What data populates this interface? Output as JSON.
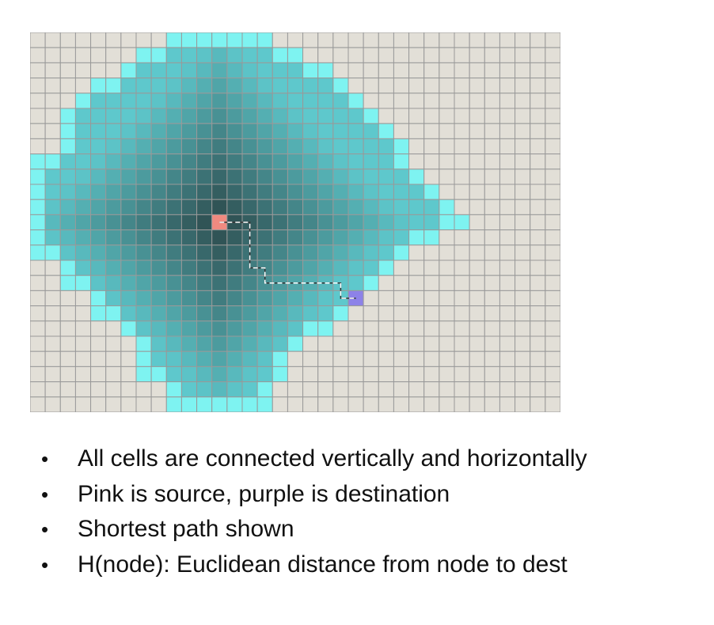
{
  "grid": {
    "cols": 35,
    "rows": 25,
    "source": [
      12,
      12
    ],
    "destination": [
      21,
      17
    ],
    "colors": {
      "unexplored": "#e2dfd7",
      "gridline": "#999999",
      "frontier": "#7ef3f1",
      "explored_light": "#5ec8cc",
      "explored_dark": "#2c4a4c",
      "source": "#f08a80",
      "destination": "#8d82e8",
      "path": "#ffffff"
    },
    "explored_rows": [
      [
        9,
        15
      ],
      [
        7,
        17
      ],
      [
        6,
        19
      ],
      [
        4,
        20
      ],
      [
        3,
        21
      ],
      [
        2,
        22
      ],
      [
        2,
        23
      ],
      [
        2,
        24
      ],
      [
        0,
        24
      ],
      [
        0,
        25
      ],
      [
        0,
        26
      ],
      [
        0,
        27
      ],
      [
        0,
        28
      ],
      [
        0,
        26
      ],
      [
        0,
        24
      ],
      [
        2,
        23
      ],
      [
        2,
        22
      ],
      [
        4,
        21
      ],
      [
        4,
        20
      ],
      [
        6,
        19
      ],
      [
        7,
        17
      ],
      [
        7,
        16
      ],
      [
        7,
        16
      ],
      [
        9,
        15
      ],
      [
        9,
        15
      ]
    ],
    "path": [
      [
        12,
        12
      ],
      [
        13,
        12
      ],
      [
        14,
        12
      ],
      [
        14,
        13
      ],
      [
        14,
        14
      ],
      [
        14,
        15
      ],
      [
        15,
        15
      ],
      [
        15,
        16
      ],
      [
        16,
        16
      ],
      [
        17,
        16
      ],
      [
        18,
        16
      ],
      [
        19,
        16
      ],
      [
        20,
        16
      ],
      [
        20,
        17
      ],
      [
        21,
        17
      ]
    ]
  },
  "bullets": [
    {
      "symbol": "•",
      "text": "All cells are connected vertically and horizontally"
    },
    {
      "symbol": "•",
      "text": "Pink is source, purple is destination"
    },
    {
      "symbol": "•",
      "text": "Shortest path shown"
    },
    {
      "symbol": "•",
      "text": "H(node): Euclidean distance from node to dest"
    }
  ]
}
